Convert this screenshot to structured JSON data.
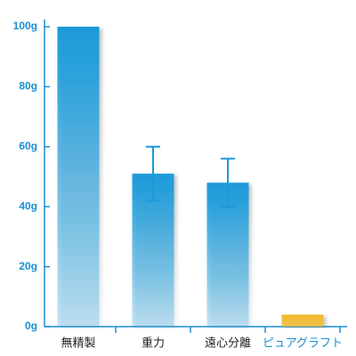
{
  "chart_data": {
    "type": "bar",
    "categories": [
      "無精製",
      "重力",
      "遠心分離",
      "ピュアグラフト"
    ],
    "values": [
      100,
      51,
      48,
      4
    ],
    "errors": [
      null,
      9,
      8,
      null
    ],
    "colors": [
      "#1a9ad9",
      "#1a9ad9",
      "#1a9ad9",
      "#f2b82a"
    ],
    "label_colors": [
      "#222222",
      "#222222",
      "#222222",
      "#1a8fd0"
    ],
    "axis_color": "#1a8fd0",
    "ylim": [
      0,
      100
    ],
    "yticks": [
      {
        "value": 0,
        "label": "0g"
      },
      {
        "value": 20,
        "label": "20g"
      },
      {
        "value": 40,
        "label": "40g"
      },
      {
        "value": 60,
        "label": "60g"
      },
      {
        "value": 80,
        "label": "80g"
      },
      {
        "value": 100,
        "label": "100g"
      }
    ]
  }
}
